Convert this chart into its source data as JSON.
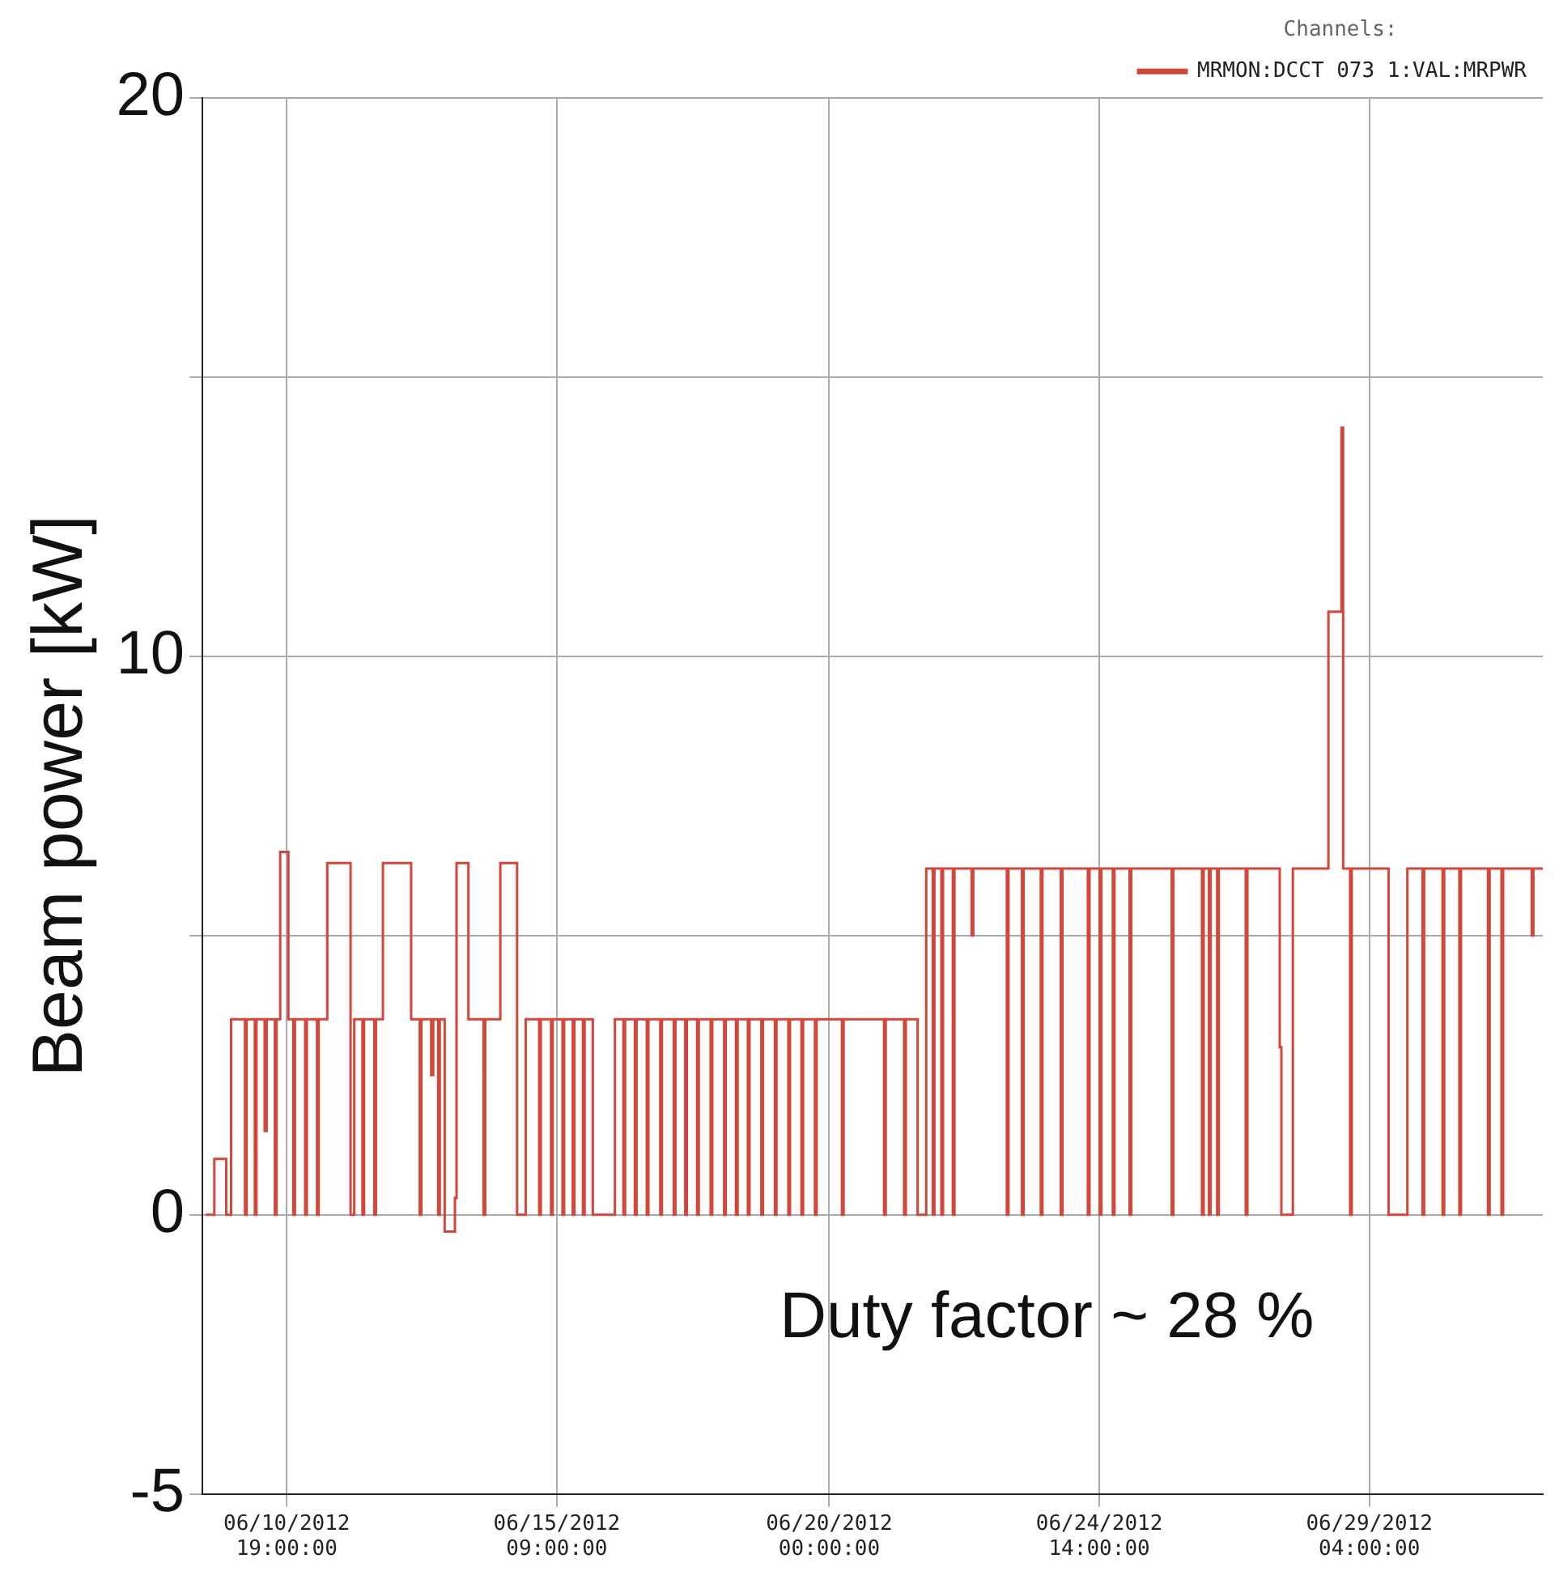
{
  "chart_data": {
    "type": "step",
    "ylabel": "Beam power [kW]",
    "legend_title": "Channels:",
    "legend": "top right",
    "grid": true,
    "xlim": [
      "2012-06-09T08:40",
      "2012-07-02T02:40"
    ],
    "xticks": [
      {
        "value": "2012-06-10T19:00",
        "label": "06/10/2012 19:00:00"
      },
      {
        "value": "2012-06-15T09:00",
        "label": "06/15/2012 09:00:00"
      },
      {
        "value": "2012-06-20T00:00",
        "label": "06/20/2012 00:00:00"
      },
      {
        "value": "2012-06-24T14:00",
        "label": "06/24/2012 14:00:00"
      },
      {
        "value": "2012-06-29T04:00",
        "label": "06/29/2012 04:00:00"
      }
    ],
    "ylim": [
      -5,
      20
    ],
    "yticks": [
      -5,
      0,
      {
        "value": 5,
        "label": null
      },
      10,
      {
        "value": 15,
        "label": null
      },
      20
    ],
    "annotations": [
      "Duty factor ~ 28 %"
    ],
    "series": [
      {
        "name": "MRMON:DCCT 073 1:VAL:MRPWR",
        "color": "#d2473a",
        "x": [
          "2012-06-09T10:00",
          "2012-06-09T13:30",
          "2012-06-09T18:20",
          "2012-06-09T20:20",
          "2012-06-10T02:00",
          "2012-06-10T02:40",
          "2012-06-10T06:00",
          "2012-06-10T06:40",
          "2012-06-10T10:00",
          "2012-06-10T10:50",
          "2012-06-10T14:10",
          "2012-06-10T14:50",
          "2012-06-10T16:20",
          "2012-06-10T19:40",
          "2012-06-10T21:40",
          "2012-06-10T22:20",
          "2012-06-11T02:30",
          "2012-06-11T03:10",
          "2012-06-11T07:20",
          "2012-06-11T08:00",
          "2012-06-11T11:30",
          "2012-06-11T21:00",
          "2012-06-11T22:30",
          "2012-06-12T01:50",
          "2012-06-12T02:30",
          "2012-06-12T06:40",
          "2012-06-12T07:20",
          "2012-06-12T10:10",
          "2012-06-12T21:40",
          "2012-06-13T01:10",
          "2012-06-13T01:50",
          "2012-06-13T05:50",
          "2012-06-13T06:40",
          "2012-06-13T08:40",
          "2012-06-13T09:20",
          "2012-06-13T11:20",
          "2012-06-13T15:30",
          "2012-06-13T16:10",
          "2012-06-13T21:00",
          "2012-06-14T03:10",
          "2012-06-14T03:50",
          "2012-06-14T10:00",
          "2012-06-14T16:50",
          "2012-06-14T20:20",
          "2012-06-15T01:50",
          "2012-06-15T02:30",
          "2012-06-15T06:40",
          "2012-06-15T07:20",
          "2012-06-15T11:20",
          "2012-06-15T12:00",
          "2012-06-15T15:30",
          "2012-06-15T16:10",
          "2012-06-15T19:40",
          "2012-06-15T20:20",
          "2012-06-15T23:40",
          "2012-06-16T08:40",
          "2012-06-16T12:10",
          "2012-06-16T12:50",
          "2012-06-16T16:50",
          "2012-06-16T17:30",
          "2012-06-16T21:40",
          "2012-06-16T22:20",
          "2012-06-17T03:10",
          "2012-06-17T03:50",
          "2012-06-17T08:40",
          "2012-06-17T09:20",
          "2012-06-17T13:20",
          "2012-06-17T14:00",
          "2012-06-17T18:10",
          "2012-06-17T18:50",
          "2012-06-17T23:40",
          "2012-06-18T00:20",
          "2012-06-18T05:10",
          "2012-06-18T05:50",
          "2012-06-18T10:00",
          "2012-06-18T10:40",
          "2012-06-18T14:50",
          "2012-06-18T15:30",
          "2012-06-18T20:20",
          "2012-06-18T21:00",
          "2012-06-19T01:50",
          "2012-06-19T02:30",
          "2012-06-19T07:20",
          "2012-06-19T08:00",
          "2012-06-19T12:40",
          "2012-06-19T13:20",
          "2012-06-19T18:10",
          "2012-06-19T18:50",
          "2012-06-20T05:10",
          "2012-06-20T05:50",
          "2012-06-20T22:20",
          "2012-06-20T23:00",
          "2012-06-21T06:30",
          "2012-06-21T07:10",
          "2012-06-21T12:00",
          "2012-06-21T15:30",
          "2012-06-21T18:10",
          "2012-06-21T18:50",
          "2012-06-21T21:40",
          "2012-06-21T22:20",
          "2012-06-22T02:20",
          "2012-06-22T03:00",
          "2012-06-22T10:00",
          "2012-06-22T10:40",
          "2012-06-23T00:20",
          "2012-06-23T01:00",
          "2012-06-23T06:30",
          "2012-06-23T07:10",
          "2012-06-23T14:10",
          "2012-06-23T14:50",
          "2012-06-23T22:20",
          "2012-06-23T23:00",
          "2012-06-24T09:20",
          "2012-06-24T10:00",
          "2012-06-24T14:10",
          "2012-06-24T14:50",
          "2012-06-24T19:30",
          "2012-06-24T20:10",
          "2012-06-25T02:20",
          "2012-06-25T03:00",
          "2012-06-25T19:30",
          "2012-06-25T20:10",
          "2012-06-26T07:50",
          "2012-06-26T08:30",
          "2012-06-26T10:40",
          "2012-06-26T11:20",
          "2012-06-26T14:00",
          "2012-06-26T14:40",
          "2012-06-27T01:40",
          "2012-06-27T02:20",
          "2012-06-27T15:30",
          "2012-06-27T16:10",
          "2012-06-27T20:50",
          "2012-06-28T11:20",
          "2012-06-28T16:40",
          "2012-06-28T17:20",
          "2012-06-28T20:10",
          "2012-06-28T20:50",
          "2012-06-29T11:50",
          "2012-06-29T19:30",
          "2012-06-30T01:40",
          "2012-06-30T02:20",
          "2012-06-30T09:50",
          "2012-06-30T10:30",
          "2012-06-30T16:40",
          "2012-06-30T17:20",
          "2012-07-01T04:20",
          "2012-07-01T05:00",
          "2012-07-01T09:50",
          "2012-07-01T10:30",
          "2012-07-01T22:10",
          "2012-07-01T22:50",
          "2012-07-02T02:40"
        ],
        "values": [
          0,
          1.0,
          0,
          3.5,
          0,
          3.5,
          0,
          3.5,
          1.5,
          3.5,
          0,
          3.5,
          6.5,
          3.5,
          0,
          3.5,
          0,
          3.5,
          0,
          3.5,
          6.3,
          0,
          3.5,
          0,
          3.5,
          0,
          3.5,
          6.3,
          3.5,
          0,
          3.5,
          2.5,
          3.5,
          0,
          3.5,
          -0.3,
          0.3,
          6.3,
          3.5,
          0,
          3.5,
          6.3,
          0,
          3.5,
          0,
          3.5,
          0,
          3.5,
          0,
          3.5,
          0,
          3.5,
          0,
          3.5,
          0,
          3.5,
          0,
          3.5,
          0,
          3.5,
          0,
          3.5,
          0,
          3.5,
          0,
          3.5,
          0,
          3.5,
          0,
          3.5,
          0,
          3.5,
          0,
          3.5,
          0,
          3.5,
          0,
          3.5,
          0,
          3.5,
          0,
          3.5,
          0,
          3.5,
          0,
          3.5,
          0,
          3.5,
          0,
          3.5,
          0,
          3.5,
          0,
          3.5,
          0,
          6.2,
          0,
          6.2,
          0,
          6.2,
          0,
          6.2,
          5.0,
          6.2,
          0,
          6.2,
          0,
          6.2,
          0,
          6.2,
          0,
          6.2,
          0,
          6.2,
          0,
          6.2,
          0,
          6.2,
          0,
          6.2,
          0,
          6.2,
          0,
          6.2,
          0,
          6.2,
          0,
          6.2,
          0,
          6.2,
          3.0,
          0,
          6.2,
          10.8,
          14.1,
          6.2,
          0,
          6.2,
          0,
          6.2,
          0,
          6.2,
          0,
          6.2,
          0,
          6.2,
          0,
          6.2,
          0,
          6.2,
          5.0,
          6.2,
          6.2
        ]
      }
    ]
  }
}
